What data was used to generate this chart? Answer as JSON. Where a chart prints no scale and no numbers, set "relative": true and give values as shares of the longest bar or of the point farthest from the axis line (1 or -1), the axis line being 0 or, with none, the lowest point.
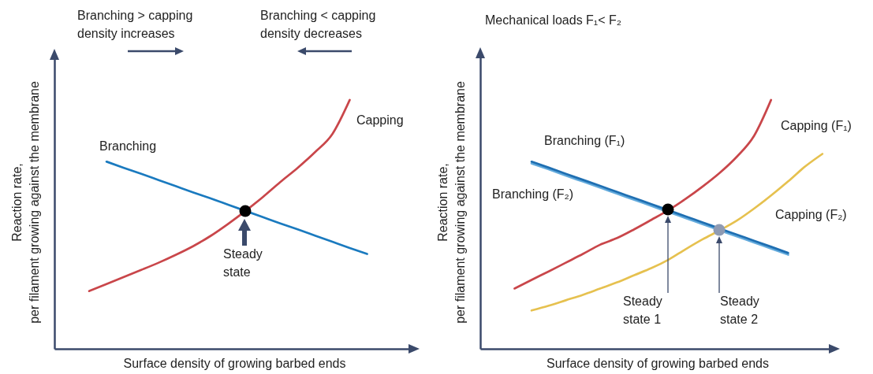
{
  "chart_data": [
    {
      "type": "line",
      "relative": true,
      "xlabel": "Surface density of growing barbed ends",
      "ylabel": "Reaction rate,\nper filament growing against the membrane",
      "categories": [
        null,
        null,
        null,
        null,
        null,
        null,
        null,
        null,
        null,
        null,
        null,
        null,
        null,
        null,
        null,
        null,
        null,
        null,
        null,
        null,
        null
      ],
      "series": [
        {
          "name": "Branching",
          "color": "#1a7abf",
          "values": [
            null,
            null,
            null,
            0.752,
            0.727,
            0.703,
            0.678,
            0.653,
            0.628,
            0.604,
            0.579,
            0.554,
            0.529,
            0.504,
            0.48,
            0.455,
            0.43,
            0.405,
            0.381,
            null,
            null
          ]
        },
        {
          "name": "Capping",
          "color": "#c9464a",
          "values": [
            null,
            null,
            0.232,
            0.26,
            0.289,
            0.317,
            0.346,
            0.378,
            0.413,
            0.454,
            0.502,
            0.554,
            0.61,
            0.67,
            0.727,
            0.79,
            0.863,
            1,
            null,
            null,
            null
          ]
        }
      ],
      "annotations": [
        "Branching > capping\ndensity increases",
        "Branching < capping\ndensity decreases",
        "Steady\nstate"
      ]
    },
    {
      "type": "line",
      "relative": true,
      "title": "Mechanical loads F₁< F₂",
      "xlabel": "Surface density of growing barbed ends",
      "ylabel": "Reaction rate,\nper filament growing against the membrane",
      "categories": [
        null,
        null,
        null,
        null,
        null,
        null,
        null,
        null,
        null,
        null,
        null,
        null,
        null,
        null,
        null,
        null,
        null,
        null,
        null,
        null,
        null
      ],
      "series": [
        {
          "name": "Branching (F₂)",
          "color": "#62aadc",
          "values": [
            null,
            null,
            null,
            0.745,
            0.721,
            0.696,
            0.672,
            0.648,
            0.623,
            0.599,
            0.574,
            0.55,
            0.525,
            0.501,
            0.476,
            0.452,
            0.427,
            0.403,
            0.378,
            null,
            null
          ]
        },
        {
          "name": "Branching (F₁)",
          "color": "#1f6fb2",
          "values": [
            null,
            null,
            null,
            0.752,
            0.728,
            0.703,
            0.679,
            0.655,
            0.63,
            0.606,
            0.581,
            0.557,
            0.532,
            0.508,
            0.483,
            0.459,
            0.434,
            0.41,
            0.385,
            null,
            null
          ]
        },
        {
          "name": "Capping (F₁)",
          "color": "#c9464a",
          "values": [
            null,
            null,
            0.242,
            0.277,
            0.311,
            0.346,
            0.381,
            0.418,
            0.445,
            0.48,
            0.518,
            0.557,
            0.602,
            0.652,
            0.707,
            0.772,
            0.855,
            1,
            null,
            null,
            null
          ]
        },
        {
          "name": "Capping (F₂)",
          "color": "#e6c14f",
          "values": [
            null,
            null,
            null,
            0.154,
            0.173,
            0.195,
            0.217,
            0.242,
            0.267,
            0.296,
            0.324,
            0.358,
            0.4,
            0.44,
            0.476,
            0.515,
            0.563,
            0.616,
            0.673,
            0.733,
            0.783
          ]
        }
      ],
      "annotations": [
        "Steady\nstate 1",
        "Steady\nstate 2"
      ]
    }
  ]
}
